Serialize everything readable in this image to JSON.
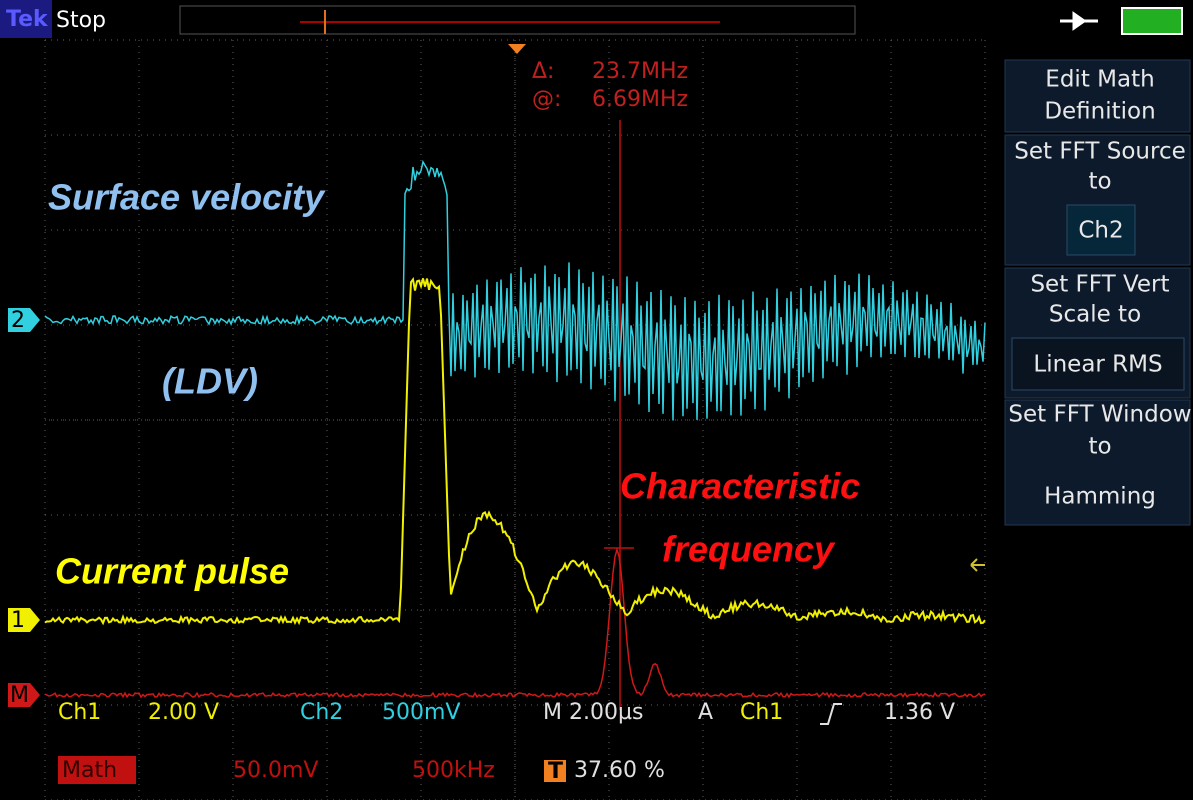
{
  "header": {
    "brand": "Tek",
    "status": "Stop"
  },
  "cursor": {
    "delta_label": "Δ:",
    "delta_value": "23.7MHz",
    "at_label": "@:",
    "at_value": "6.69MHz"
  },
  "menu": {
    "items": [
      {
        "label": "Edit Math Definition"
      },
      {
        "label": "Set FFT Source to",
        "value": "Ch2"
      },
      {
        "label": "Set FFT Vert Scale to",
        "value": "Linear RMS"
      },
      {
        "label": "Set FFT Window to",
        "value": "Hamming"
      }
    ]
  },
  "markers": {
    "ch2": "2",
    "ch1": "1",
    "math": "M"
  },
  "annotations": {
    "surface": "Surface velocity",
    "ldv": "(LDV)",
    "current": "Current pulse",
    "characteristic": "Characteristic",
    "frequency": "frequency"
  },
  "status_bar": {
    "row1": {
      "ch1": "Ch1",
      "ch1_scale": "2.00 V",
      "ch2": "Ch2",
      "ch2_scale": "500mV",
      "timebase": "M 2.00µs",
      "trigger_mode": "A",
      "trigger_source": "Ch1",
      "trigger_level": "1.36 V"
    },
    "row2": {
      "math": "Math",
      "math_scale": "50.0mV",
      "math_span": "500kHz",
      "t_icon": "T",
      "position": "37.60 %"
    }
  }
}
